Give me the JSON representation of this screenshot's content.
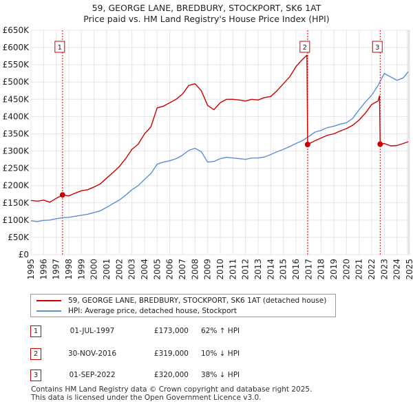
{
  "title_line1": "59, GEORGE LANE, BREDBURY, STOCKPORT, SK6 1AT",
  "title_line2": "Price paid vs. HM Land Registry's House Price Index (HPI)",
  "legend": {
    "property_label": "59, GEORGE LANE, BREDBURY, STOCKPORT, SK6 1AT (detached house)",
    "hpi_label": "HPI: Average price, detached house, Stockport"
  },
  "sales": [
    {
      "num": "1",
      "date": "01-JUL-1997",
      "price": "£173,000",
      "hpi": "62% ↑ HPI"
    },
    {
      "num": "2",
      "date": "30-NOV-2016",
      "price": "£319,000",
      "hpi": "10% ↓ HPI"
    },
    {
      "num": "3",
      "date": "01-SEP-2022",
      "price": "£320,000",
      "hpi": "38% ↓ HPI"
    }
  ],
  "footer_line1": "Contains HM Land Registry data © Crown copyright and database right 2025.",
  "footer_line2": "This data is licensed under the Open Government Licence v3.0.",
  "colors": {
    "property": "#cc0000",
    "hpi": "#5b8fd0",
    "marker_line": "#cc0000",
    "grid": "#e5e5e5",
    "future_shade": "#e8e8e8"
  },
  "chart_data": {
    "type": "line",
    "title": "Price paid vs. HM Land Registry's House Price Index (HPI)",
    "xlim": [
      1995,
      2025
    ],
    "ylim": [
      0,
      650000
    ],
    "x_ticks": [
      1995,
      1996,
      1997,
      1998,
      1999,
      2000,
      2001,
      2002,
      2003,
      2004,
      2005,
      2006,
      2007,
      2008,
      2009,
      2010,
      2011,
      2012,
      2013,
      2014,
      2015,
      2016,
      2017,
      2018,
      2019,
      2020,
      2021,
      2022,
      2023,
      2024,
      2025
    ],
    "y_ticks": [
      0,
      50000,
      100000,
      150000,
      200000,
      250000,
      300000,
      350000,
      400000,
      450000,
      500000,
      550000,
      600000,
      650000
    ],
    "y_tick_labels": [
      "£0",
      "£50K",
      "£100K",
      "£150K",
      "£200K",
      "£250K",
      "£300K",
      "£350K",
      "£400K",
      "£450K",
      "£500K",
      "£550K",
      "£600K",
      "£650K"
    ],
    "grid": true,
    "series": [
      {
        "name": "59, GEORGE LANE, BREDBURY, STOCKPORT, SK6 1AT (detached house)",
        "color": "#cc0000",
        "points": [
          [
            1995.0,
            157000
          ],
          [
            1995.5,
            155000
          ],
          [
            1996.0,
            158000
          ],
          [
            1996.5,
            152000
          ],
          [
            1997.0,
            163000
          ],
          [
            1997.5,
            173000
          ],
          [
            1998.0,
            170000
          ],
          [
            1998.5,
            178000
          ],
          [
            1999.0,
            185000
          ],
          [
            1999.5,
            188000
          ],
          [
            2000.0,
            196000
          ],
          [
            2000.5,
            205000
          ],
          [
            2001.0,
            222000
          ],
          [
            2001.5,
            238000
          ],
          [
            2002.0,
            255000
          ],
          [
            2002.5,
            278000
          ],
          [
            2003.0,
            305000
          ],
          [
            2003.5,
            320000
          ],
          [
            2004.0,
            350000
          ],
          [
            2004.5,
            370000
          ],
          [
            2005.0,
            425000
          ],
          [
            2005.5,
            430000
          ],
          [
            2006.0,
            440000
          ],
          [
            2006.5,
            450000
          ],
          [
            2007.0,
            465000
          ],
          [
            2007.5,
            490000
          ],
          [
            2008.0,
            495000
          ],
          [
            2008.5,
            475000
          ],
          [
            2009.0,
            432000
          ],
          [
            2009.5,
            420000
          ],
          [
            2010.0,
            440000
          ],
          [
            2010.5,
            450000
          ],
          [
            2011.0,
            450000
          ],
          [
            2011.5,
            448000
          ],
          [
            2012.0,
            445000
          ],
          [
            2012.5,
            450000
          ],
          [
            2013.0,
            448000
          ],
          [
            2013.5,
            455000
          ],
          [
            2014.0,
            458000
          ],
          [
            2014.5,
            475000
          ],
          [
            2015.0,
            495000
          ],
          [
            2015.5,
            515000
          ],
          [
            2016.0,
            545000
          ],
          [
            2016.5,
            565000
          ],
          [
            2016.87,
            578000
          ],
          [
            2016.92,
            319000
          ],
          [
            2017.5,
            330000
          ],
          [
            2018.0,
            338000
          ],
          [
            2018.5,
            346000
          ],
          [
            2019.0,
            350000
          ],
          [
            2019.5,
            358000
          ],
          [
            2020.0,
            365000
          ],
          [
            2020.5,
            375000
          ],
          [
            2021.0,
            390000
          ],
          [
            2021.5,
            410000
          ],
          [
            2022.0,
            435000
          ],
          [
            2022.5,
            445000
          ],
          [
            2022.62,
            460000
          ],
          [
            2022.67,
            320000
          ],
          [
            2023.0,
            322000
          ],
          [
            2023.5,
            315000
          ],
          [
            2024.0,
            316000
          ],
          [
            2024.5,
            322000
          ],
          [
            2024.9,
            327000
          ]
        ]
      },
      {
        "name": "HPI: Average price, detached house, Stockport",
        "color": "#5b8fd0",
        "points": [
          [
            1995.0,
            98000
          ],
          [
            1995.5,
            96000
          ],
          [
            1996.0,
            99000
          ],
          [
            1996.5,
            100000
          ],
          [
            1997.0,
            104000
          ],
          [
            1997.5,
            107000
          ],
          [
            1998.0,
            108000
          ],
          [
            1998.5,
            111000
          ],
          [
            1999.0,
            114000
          ],
          [
            1999.5,
            117000
          ],
          [
            2000.0,
            122000
          ],
          [
            2000.5,
            127000
          ],
          [
            2001.0,
            137000
          ],
          [
            2001.5,
            148000
          ],
          [
            2002.0,
            158000
          ],
          [
            2002.5,
            172000
          ],
          [
            2003.0,
            188000
          ],
          [
            2003.5,
            200000
          ],
          [
            2004.0,
            218000
          ],
          [
            2004.5,
            235000
          ],
          [
            2005.0,
            262000
          ],
          [
            2005.5,
            268000
          ],
          [
            2006.0,
            272000
          ],
          [
            2006.5,
            278000
          ],
          [
            2007.0,
            288000
          ],
          [
            2007.5,
            302000
          ],
          [
            2008.0,
            308000
          ],
          [
            2008.5,
            298000
          ],
          [
            2009.0,
            268000
          ],
          [
            2009.5,
            270000
          ],
          [
            2010.0,
            278000
          ],
          [
            2010.5,
            282000
          ],
          [
            2011.0,
            280000
          ],
          [
            2011.5,
            278000
          ],
          [
            2012.0,
            276000
          ],
          [
            2012.5,
            280000
          ],
          [
            2013.0,
            280000
          ],
          [
            2013.5,
            283000
          ],
          [
            2014.0,
            290000
          ],
          [
            2014.5,
            298000
          ],
          [
            2015.0,
            305000
          ],
          [
            2015.5,
            313000
          ],
          [
            2016.0,
            322000
          ],
          [
            2016.5,
            330000
          ],
          [
            2017.0,
            342000
          ],
          [
            2017.5,
            355000
          ],
          [
            2018.0,
            360000
          ],
          [
            2018.5,
            368000
          ],
          [
            2019.0,
            372000
          ],
          [
            2019.5,
            378000
          ],
          [
            2020.0,
            382000
          ],
          [
            2020.5,
            395000
          ],
          [
            2021.0,
            420000
          ],
          [
            2021.5,
            442000
          ],
          [
            2022.0,
            462000
          ],
          [
            2022.5,
            490000
          ],
          [
            2023.0,
            525000
          ],
          [
            2023.5,
            515000
          ],
          [
            2024.0,
            505000
          ],
          [
            2024.5,
            512000
          ],
          [
            2024.9,
            530000
          ]
        ]
      }
    ],
    "sales": [
      {
        "label": "1",
        "x": 1997.5,
        "y": 173000
      },
      {
        "label": "2",
        "x": 2016.92,
        "y": 319000
      },
      {
        "label": "3",
        "x": 2022.67,
        "y": 320000
      }
    ]
  }
}
